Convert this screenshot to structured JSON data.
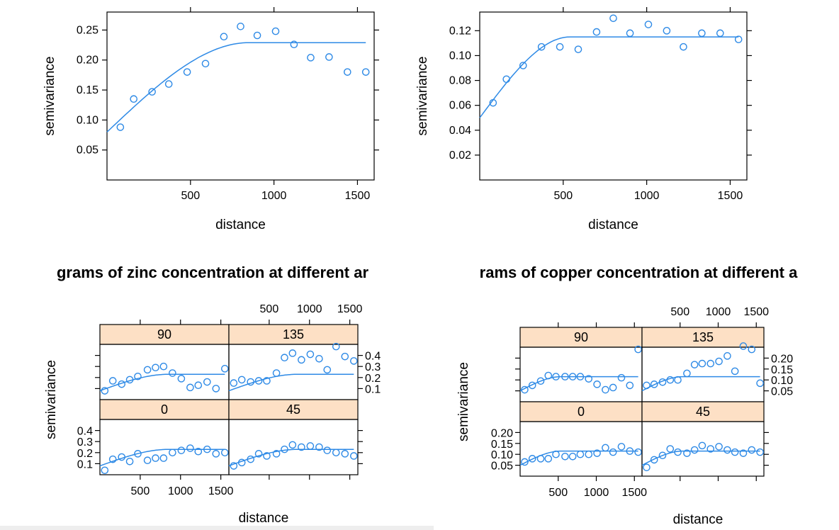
{
  "chart_data": [
    {
      "id": "zinc-overall",
      "type": "scatter",
      "title": "",
      "xlabel": "distance",
      "ylabel": "semivariance",
      "xlim": [
        0,
        1600
      ],
      "ylim": [
        0,
        0.28
      ],
      "x_ticks": [
        500,
        1000,
        1500
      ],
      "y_ticks": [
        "0.05",
        "0.10",
        "0.15",
        "0.20",
        "0.25"
      ],
      "points": [
        [
          80,
          0.088
        ],
        [
          160,
          0.135
        ],
        [
          270,
          0.147
        ],
        [
          370,
          0.16
        ],
        [
          480,
          0.18
        ],
        [
          590,
          0.194
        ],
        [
          700,
          0.239
        ],
        [
          800,
          0.256
        ],
        [
          900,
          0.241
        ],
        [
          1010,
          0.248
        ],
        [
          1120,
          0.226
        ],
        [
          1220,
          0.204
        ],
        [
          1330,
          0.205
        ],
        [
          1440,
          0.18
        ],
        [
          1550,
          0.18
        ]
      ],
      "model": {
        "nugget": 0.08,
        "sill": 0.229,
        "range": 850,
        "x_end": 1550
      }
    },
    {
      "id": "copper-overall",
      "type": "scatter",
      "title": "",
      "xlabel": "distance",
      "ylabel": "semivariance",
      "xlim": [
        0,
        1600
      ],
      "ylim": [
        0,
        0.135
      ],
      "x_ticks": [
        500,
        1000,
        1500
      ],
      "y_ticks": [
        "0.02",
        "0.04",
        "0.06",
        "0.08",
        "0.10",
        "0.12"
      ],
      "points": [
        [
          80,
          0.062
        ],
        [
          160,
          0.081
        ],
        [
          260,
          0.092
        ],
        [
          370,
          0.107
        ],
        [
          480,
          0.107
        ],
        [
          590,
          0.105
        ],
        [
          700,
          0.119
        ],
        [
          800,
          0.13
        ],
        [
          900,
          0.118
        ],
        [
          1010,
          0.125
        ],
        [
          1120,
          0.12
        ],
        [
          1220,
          0.107
        ],
        [
          1330,
          0.118
        ],
        [
          1440,
          0.118
        ],
        [
          1550,
          0.113
        ]
      ],
      "model": {
        "nugget": 0.05,
        "sill": 0.115,
        "range": 540,
        "x_end": 1550
      }
    },
    {
      "id": "zinc-directional",
      "type": "scatter",
      "title": "grams of zinc concentration at different ar",
      "xlabel": "distance",
      "ylabel": "semivariance",
      "xlim": [
        0,
        1600
      ],
      "ylim": [
        0,
        0.5
      ],
      "x_ticks": [
        500,
        1000,
        1500
      ],
      "y_ticks": [
        "0.1",
        "0.2",
        "0.3",
        "0.4"
      ],
      "panels": [
        {
          "label": "90",
          "model": {
            "nugget": 0.08,
            "sill": 0.229,
            "range": 850
          },
          "points": [
            [
              60,
              0.08
            ],
            [
              160,
              0.17
            ],
            [
              270,
              0.14
            ],
            [
              370,
              0.18
            ],
            [
              470,
              0.21
            ],
            [
              590,
              0.27
            ],
            [
              690,
              0.29
            ],
            [
              790,
              0.3
            ],
            [
              900,
              0.24
            ],
            [
              1010,
              0.19
            ],
            [
              1120,
              0.11
            ],
            [
              1220,
              0.13
            ],
            [
              1330,
              0.16
            ],
            [
              1440,
              0.1
            ],
            [
              1550,
              0.28
            ]
          ]
        },
        {
          "label": "135",
          "model": {
            "nugget": 0.08,
            "sill": 0.229,
            "range": 850
          },
          "points": [
            [
              60,
              0.15
            ],
            [
              160,
              0.18
            ],
            [
              270,
              0.16
            ],
            [
              370,
              0.17
            ],
            [
              470,
              0.17
            ],
            [
              590,
              0.24
            ],
            [
              690,
              0.38
            ],
            [
              790,
              0.42
            ],
            [
              900,
              0.36
            ],
            [
              1010,
              0.41
            ],
            [
              1120,
              0.37
            ],
            [
              1220,
              0.27
            ],
            [
              1330,
              0.48
            ],
            [
              1440,
              0.39
            ],
            [
              1550,
              0.35
            ]
          ]
        },
        {
          "label": "0",
          "model": {
            "nugget": 0.08,
            "sill": 0.229,
            "range": 850
          },
          "points": [
            [
              60,
              0.04
            ],
            [
              160,
              0.14
            ],
            [
              270,
              0.16
            ],
            [
              370,
              0.12
            ],
            [
              470,
              0.19
            ],
            [
              590,
              0.13
            ],
            [
              690,
              0.15
            ],
            [
              790,
              0.15
            ],
            [
              900,
              0.2
            ],
            [
              1010,
              0.22
            ],
            [
              1120,
              0.24
            ],
            [
              1220,
              0.21
            ],
            [
              1330,
              0.23
            ],
            [
              1440,
              0.19
            ],
            [
              1550,
              0.2
            ]
          ]
        },
        {
          "label": "45",
          "model": {
            "nugget": 0.08,
            "sill": 0.229,
            "range": 850
          },
          "points": [
            [
              60,
              0.08
            ],
            [
              160,
              0.11
            ],
            [
              270,
              0.14
            ],
            [
              370,
              0.19
            ],
            [
              470,
              0.17
            ],
            [
              590,
              0.19
            ],
            [
              690,
              0.23
            ],
            [
              790,
              0.27
            ],
            [
              900,
              0.25
            ],
            [
              1010,
              0.26
            ],
            [
              1120,
              0.25
            ],
            [
              1220,
              0.22
            ],
            [
              1330,
              0.2
            ],
            [
              1440,
              0.19
            ],
            [
              1550,
              0.17
            ]
          ]
        }
      ]
    },
    {
      "id": "copper-directional",
      "type": "scatter",
      "title": "rams of copper concentration at different a",
      "xlabel": "distance",
      "ylabel": "semivariance",
      "xlim": [
        0,
        1600
      ],
      "ylim": [
        0,
        0.25
      ],
      "x_ticks": [
        500,
        1000,
        1500
      ],
      "y_ticks": [
        "0.05",
        "0.10",
        "0.15",
        "0.20"
      ],
      "panels": [
        {
          "label": "90",
          "model": {
            "nugget": 0.05,
            "sill": 0.115,
            "range": 540
          },
          "points": [
            [
              60,
              0.055
            ],
            [
              160,
              0.075
            ],
            [
              270,
              0.095
            ],
            [
              370,
              0.12
            ],
            [
              470,
              0.115
            ],
            [
              590,
              0.115
            ],
            [
              690,
              0.115
            ],
            [
              790,
              0.115
            ],
            [
              900,
              0.105
            ],
            [
              1010,
              0.08
            ],
            [
              1120,
              0.055
            ],
            [
              1220,
              0.065
            ],
            [
              1330,
              0.11
            ],
            [
              1440,
              0.075
            ],
            [
              1550,
              0.24
            ]
          ]
        },
        {
          "label": "135",
          "model": {
            "nugget": 0.05,
            "sill": 0.115,
            "range": 540
          },
          "points": [
            [
              60,
              0.075
            ],
            [
              160,
              0.08
            ],
            [
              270,
              0.09
            ],
            [
              370,
              0.1
            ],
            [
              470,
              0.1
            ],
            [
              590,
              0.13
            ],
            [
              690,
              0.17
            ],
            [
              790,
              0.175
            ],
            [
              900,
              0.175
            ],
            [
              1010,
              0.185
            ],
            [
              1120,
              0.21
            ],
            [
              1220,
              0.14
            ],
            [
              1330,
              0.255
            ],
            [
              1440,
              0.24
            ],
            [
              1550,
              0.085
            ]
          ]
        },
        {
          "label": "0",
          "model": {
            "nugget": 0.05,
            "sill": 0.115,
            "range": 540
          },
          "points": [
            [
              60,
              0.065
            ],
            [
              160,
              0.08
            ],
            [
              270,
              0.08
            ],
            [
              370,
              0.08
            ],
            [
              470,
              0.1
            ],
            [
              590,
              0.09
            ],
            [
              690,
              0.09
            ],
            [
              790,
              0.1
            ],
            [
              900,
              0.1
            ],
            [
              1010,
              0.105
            ],
            [
              1120,
              0.13
            ],
            [
              1220,
              0.11
            ],
            [
              1330,
              0.135
            ],
            [
              1440,
              0.115
            ],
            [
              1550,
              0.11
            ]
          ]
        },
        {
          "label": "45",
          "model": {
            "nugget": 0.05,
            "sill": 0.115,
            "range": 540
          },
          "points": [
            [
              60,
              0.04
            ],
            [
              160,
              0.075
            ],
            [
              270,
              0.095
            ],
            [
              370,
              0.125
            ],
            [
              470,
              0.11
            ],
            [
              590,
              0.105
            ],
            [
              690,
              0.12
            ],
            [
              790,
              0.14
            ],
            [
              900,
              0.125
            ],
            [
              1010,
              0.135
            ],
            [
              1120,
              0.12
            ],
            [
              1220,
              0.11
            ],
            [
              1330,
              0.105
            ],
            [
              1440,
              0.12
            ],
            [
              1550,
              0.11
            ]
          ]
        }
      ]
    }
  ]
}
